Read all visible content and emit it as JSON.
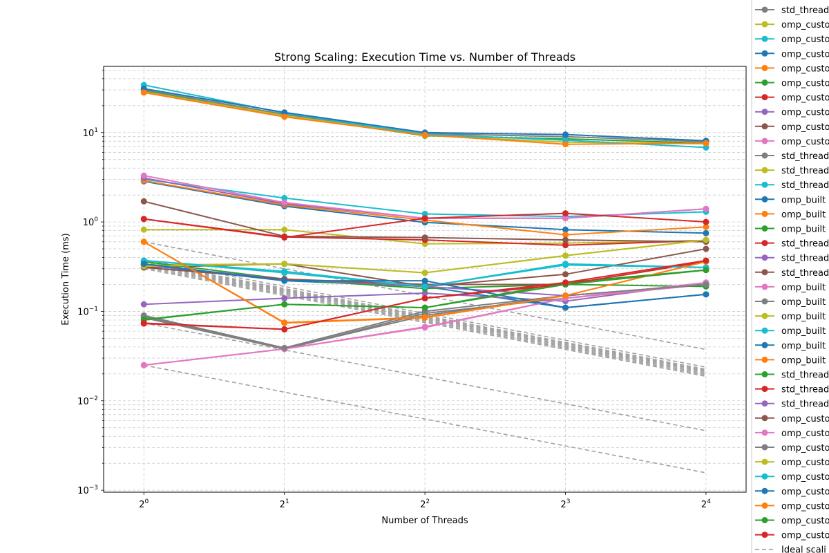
{
  "chart_data": {
    "type": "line",
    "title": "Strong Scaling: Execution Time vs. Number of Threads",
    "xlabel": "Number of Threads",
    "ylabel": "Execution Time (ms)",
    "x": [
      1,
      2,
      4,
      8,
      16
    ],
    "x_scale": "log2",
    "y_scale": "log10",
    "xlim": [
      0.82,
      19.5
    ],
    "ylim": [
      0.00095,
      55
    ],
    "x_tick_labels": [
      {
        "base": "2",
        "exp": "0"
      },
      {
        "base": "2",
        "exp": "1"
      },
      {
        "base": "2",
        "exp": "2"
      },
      {
        "base": "2",
        "exp": "3"
      },
      {
        "base": "2",
        "exp": "4"
      }
    ],
    "y_tick_labels": [
      {
        "value": 0.001,
        "base": "10",
        "exp": "−3"
      },
      {
        "value": 0.01,
        "base": "10",
        "exp": "−2"
      },
      {
        "value": 0.1,
        "base": "10",
        "exp": "−1"
      },
      {
        "value": 1,
        "base": "10",
        "exp": "0"
      },
      {
        "value": 10,
        "base": "10",
        "exp": "1"
      }
    ],
    "grid": true,
    "legend_position": "outside-right",
    "series": [
      {
        "name": "std_thread",
        "color": "#7f7f7f",
        "values": [
          0.088,
          0.038,
          0.095,
          0.14,
          0.2
        ]
      },
      {
        "name": "omp_custo",
        "color": "#bcbd22",
        "values": [
          0.33,
          0.34,
          0.27,
          0.42,
          0.63
        ]
      },
      {
        "name": "omp_custo",
        "color": "#17becf",
        "values": [
          0.37,
          0.28,
          0.19,
          0.34,
          0.31
        ]
      },
      {
        "name": "omp_custo",
        "color": "#1f77b4",
        "values": [
          0.33,
          0.22,
          0.19,
          0.11,
          0.155
        ]
      },
      {
        "name": "omp_custo",
        "color": "#ff7f0e",
        "values": [
          0.6,
          0.074,
          0.085,
          0.15,
          0.36
        ]
      },
      {
        "name": "omp_custo",
        "color": "#2ca02c",
        "values": [
          0.08,
          0.12,
          0.11,
          0.21,
          0.29
        ]
      },
      {
        "name": "omp_custo",
        "color": "#d62728",
        "values": [
          0.073,
          0.063,
          0.14,
          0.2,
          0.36
        ]
      },
      {
        "name": "omp_custo",
        "color": "#9467bd",
        "values": [
          0.12,
          0.14,
          0.16,
          0.13,
          0.21
        ]
      },
      {
        "name": "omp_custo",
        "color": "#8c564b",
        "values": [
          0.31,
          0.34,
          0.19,
          0.26,
          0.5
        ]
      },
      {
        "name": "omp_custo",
        "color": "#e377c2",
        "values": [
          0.025,
          0.038,
          0.067,
          0.14,
          0.2
        ]
      },
      {
        "name": "std_thread",
        "color": "#7f7f7f",
        "values": [
          0.085,
          0.038,
          0.09,
          0.15,
          0.2
        ]
      },
      {
        "name": "std_thread",
        "color": "#bcbd22",
        "values": [
          0.82,
          0.82,
          0.57,
          0.58,
          0.62
        ]
      },
      {
        "name": "std_thread",
        "color": "#17becf",
        "values": [
          3.0,
          1.85,
          1.23,
          1.15,
          1.3
        ]
      },
      {
        "name": "omp_built",
        "color": "#1f77b4",
        "values": [
          2.85,
          1.5,
          0.99,
          0.82,
          0.75
        ]
      },
      {
        "name": "omp_built",
        "color": "#ff7f0e",
        "values": [
          2.9,
          1.55,
          1.05,
          0.72,
          0.88
        ]
      },
      {
        "name": "omp_built",
        "color": "#2ca02c",
        "values": [
          29.0,
          15.5,
          9.2,
          8.5,
          7.6
        ]
      },
      {
        "name": "std_thread",
        "color": "#d62728",
        "values": [
          1.08,
          0.68,
          0.63,
          0.55,
          0.62
        ]
      },
      {
        "name": "std_thread",
        "color": "#9467bd",
        "values": [
          3.1,
          1.6,
          1.1,
          1.1,
          1.4
        ]
      },
      {
        "name": "std_thread",
        "color": "#8c564b",
        "values": [
          1.7,
          0.69,
          0.67,
          0.63,
          0.6
        ]
      },
      {
        "name": "omp_built",
        "color": "#e377c2",
        "values": [
          3.3,
          1.65,
          1.1,
          1.1,
          1.4
        ]
      },
      {
        "name": "omp_built",
        "color": "#7f7f7f",
        "values": [
          30.0,
          16.0,
          9.7,
          9.0,
          7.9
        ]
      },
      {
        "name": "omp_built",
        "color": "#bcbd22",
        "values": [
          28.5,
          15.5,
          9.3,
          7.8,
          7.5
        ]
      },
      {
        "name": "omp_built",
        "color": "#17becf",
        "values": [
          34.0,
          16.5,
          9.6,
          8.2,
          6.8
        ]
      },
      {
        "name": "omp_built",
        "color": "#1f77b4",
        "values": [
          31.0,
          16.8,
          10.0,
          9.5,
          8.1
        ]
      },
      {
        "name": "omp_built",
        "color": "#ff7f0e",
        "values": [
          28.0,
          15.0,
          9.4,
          7.4,
          7.6
        ]
      },
      {
        "name": "std_thread",
        "color": "#2ca02c",
        "values": [
          0.36,
          0.23,
          0.18,
          0.2,
          0.19
        ]
      },
      {
        "name": "std_thread",
        "color": "#d62728",
        "values": [
          1.08,
          0.67,
          1.1,
          1.25,
          1.0
        ]
      },
      {
        "name": "std_thread",
        "color": "#9467bd",
        "values": [
          0.33,
          0.23,
          0.19,
          0.15,
          0.2
        ]
      },
      {
        "name": "omp_custo",
        "color": "#8c564b",
        "values": [
          0.31,
          0.23,
          0.2,
          0.2,
          0.29
        ]
      },
      {
        "name": "omp_custo",
        "color": "#e377c2",
        "values": [
          0.025,
          0.038,
          0.066,
          0.14,
          0.21
        ]
      },
      {
        "name": "omp_custo",
        "color": "#7f7f7f",
        "values": [
          0.09,
          0.039,
          0.1,
          0.15,
          0.2
        ]
      },
      {
        "name": "omp_custo",
        "color": "#bcbd22",
        "values": [
          0.32,
          0.34,
          0.27,
          0.42,
          0.63
        ]
      },
      {
        "name": "omp_custo",
        "color": "#17becf",
        "values": [
          0.37,
          0.27,
          0.19,
          0.33,
          0.31
        ]
      },
      {
        "name": "omp_custo",
        "color": "#1f77b4",
        "values": [
          0.34,
          0.22,
          0.22,
          0.11,
          0.155
        ]
      },
      {
        "name": "omp_custo",
        "color": "#ff7f0e",
        "values": [
          0.6,
          0.075,
          0.086,
          0.15,
          0.36
        ]
      },
      {
        "name": "omp_custo",
        "color": "#2ca02c",
        "values": [
          0.081,
          0.12,
          0.11,
          0.2,
          0.29
        ]
      },
      {
        "name": "omp_custo",
        "color": "#d62728",
        "values": [
          0.074,
          0.063,
          0.14,
          0.21,
          0.37
        ]
      }
    ],
    "ideal_lines": {
      "name": "Ideal scali",
      "color": "#a0a0a0",
      "starts": [
        0.6,
        0.38,
        0.36,
        0.35,
        0.34,
        0.33,
        0.32,
        0.31,
        0.3,
        0.074,
        0.025
      ]
    }
  }
}
